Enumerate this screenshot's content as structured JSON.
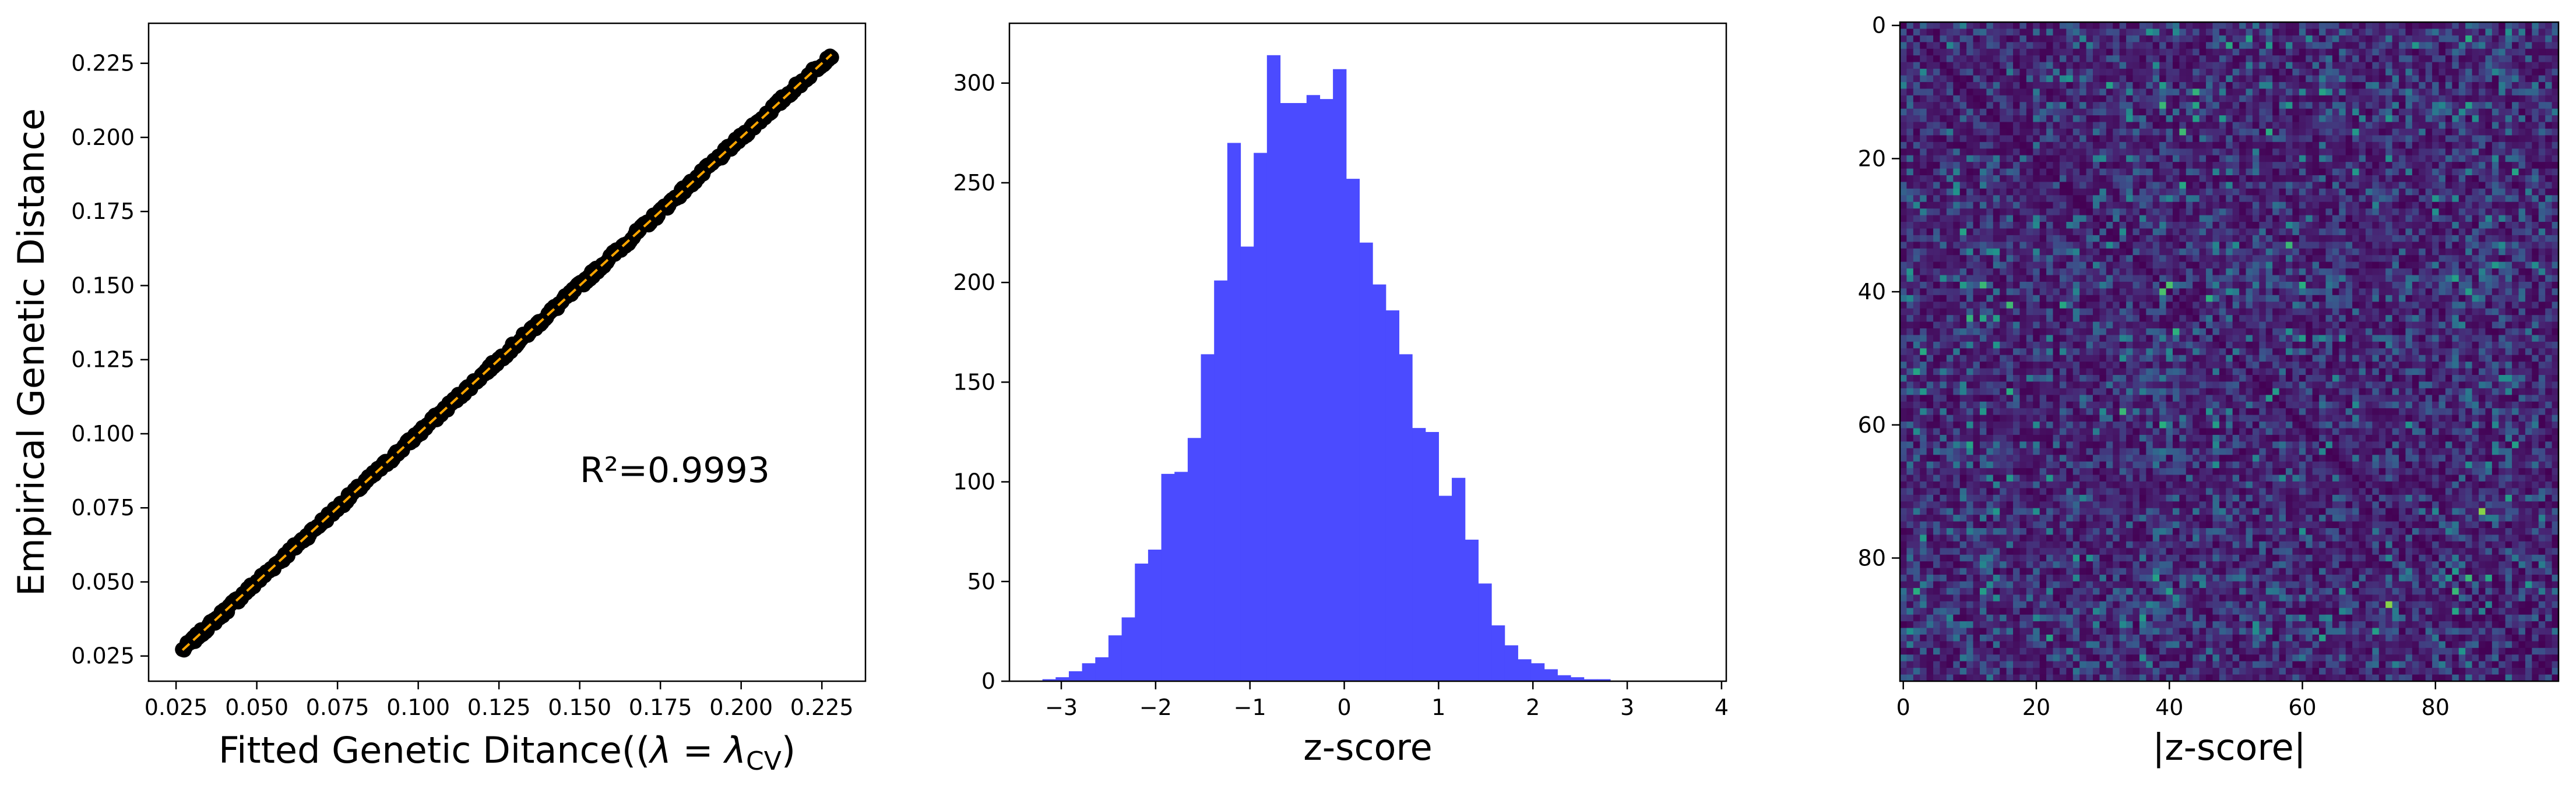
{
  "chart_data": [
    {
      "type": "scatter",
      "xlabel_main": "Fitted Genetic Ditance((",
      "xlabel_lambda": "λ = λ",
      "xlabel_sub": "CV",
      "xlabel_end": ")",
      "ylabel": "Empirical Genetic Distance",
      "xlim": [
        0.0165,
        0.2385
      ],
      "ylim": [
        0.0165,
        0.2385
      ],
      "xticks": [
        0.025,
        0.05,
        0.075,
        0.1,
        0.125,
        0.15,
        0.175,
        0.2,
        0.225
      ],
      "yticks": [
        0.025,
        0.05,
        0.075,
        0.1,
        0.125,
        0.15,
        0.175,
        0.2,
        0.225
      ],
      "tick_labels": [
        "0.025",
        "0.050",
        "0.075",
        "0.100",
        "0.125",
        "0.150",
        "0.175",
        "0.200",
        "0.225"
      ],
      "annotation": "R²=0.9993",
      "fit_line": {
        "x": [
          0.027,
          0.228
        ],
        "y": [
          0.027,
          0.228
        ]
      },
      "x_range": [
        0.027,
        0.228
      ],
      "point_color": "#000000",
      "line_color": "#ffa500"
    },
    {
      "type": "bar",
      "subtype": "histogram",
      "xlabel": "z-score",
      "bin_start": -3.2,
      "bin_width": 0.14,
      "counts": [
        1,
        2,
        5,
        9,
        12,
        23,
        32,
        59,
        66,
        104,
        105,
        122,
        164,
        201,
        270,
        218,
        265,
        314,
        290,
        290,
        294,
        292,
        307,
        252,
        220,
        199,
        186,
        164,
        127,
        125,
        93,
        102,
        71,
        49,
        28,
        18,
        11,
        9,
        6,
        3,
        2,
        1,
        1
      ],
      "xlim": [
        -3.55,
        4.05
      ],
      "ylim": [
        0,
        330
      ],
      "xticks": [
        -3,
        -2,
        -1,
        0,
        1,
        2,
        3,
        4
      ],
      "xtick_labels": [
        "−3",
        "−2",
        "−1",
        "0",
        "1",
        "2",
        "3",
        "4"
      ],
      "yticks": [
        0,
        50,
        100,
        150,
        200,
        250,
        300
      ],
      "ytick_labels": [
        "0",
        "50",
        "100",
        "150",
        "200",
        "250",
        "300"
      ],
      "bar_color": "#4b4bff"
    },
    {
      "type": "heatmap",
      "xlabel": "|z-score|",
      "size": 99,
      "colormap": "viridis",
      "value_range": [
        0,
        3.7
      ],
      "xticks": [
        0,
        20,
        40,
        60,
        80
      ],
      "yticks": [
        0,
        20,
        40,
        60,
        80
      ],
      "tick_labels": [
        "0",
        "20",
        "40",
        "60",
        "80"
      ]
    }
  ]
}
